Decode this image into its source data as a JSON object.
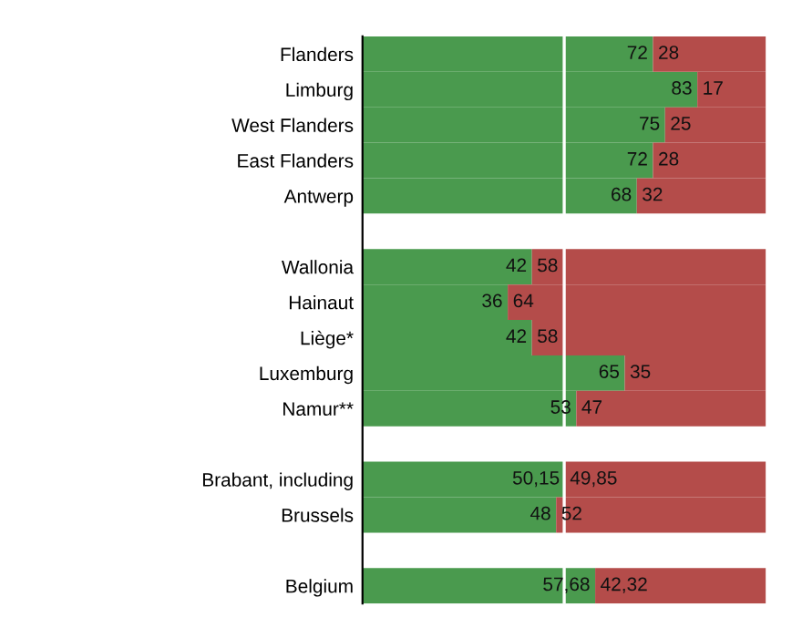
{
  "chart_data": {
    "type": "bar",
    "orientation": "horizontal",
    "stacked": true,
    "categories": [
      "Flanders",
      "Limburg",
      "West Flanders",
      "East Flanders",
      "Antwerp",
      null,
      "Wallonia",
      "Hainaut",
      "Liège*",
      "Luxemburg",
      "Namur**",
      null,
      "Brabant, including",
      "Brussels",
      null,
      "Belgium"
    ],
    "series": [
      {
        "color": "#4a9a4e",
        "values": [
          72,
          83,
          75,
          72,
          68,
          null,
          42,
          36,
          42,
          65,
          53,
          null,
          50.15,
          48,
          null,
          57.68
        ],
        "value_labels": [
          "72",
          "83",
          "75",
          "72",
          "68",
          null,
          "42",
          "36",
          "42",
          "65",
          "53",
          null,
          "50,15",
          "48",
          null,
          "57,68"
        ]
      },
      {
        "color": "#b44c4a",
        "values": [
          28,
          17,
          25,
          28,
          32,
          null,
          58,
          64,
          58,
          35,
          47,
          null,
          49.85,
          52,
          null,
          42.32
        ],
        "value_labels": [
          "28",
          "17",
          "25",
          "28",
          "32",
          null,
          "58",
          "64",
          "58",
          "35",
          "47",
          null,
          "49,85",
          "52",
          null,
          "42,32"
        ]
      }
    ],
    "xlim": [
      0,
      100
    ],
    "tick_labels": "y",
    "grid": false,
    "legend": false,
    "ref_lines": [
      {
        "axis": "x",
        "value": 50,
        "color": "#ffffff"
      }
    ]
  }
}
